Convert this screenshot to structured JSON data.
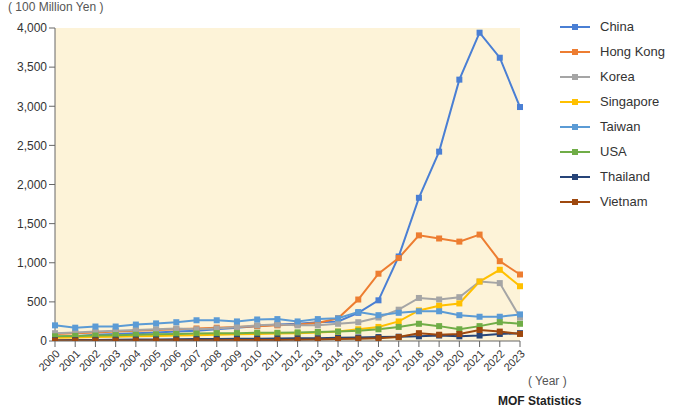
{
  "chart_data": {
    "type": "line",
    "y_label": "( 100 Million Yen )",
    "x_label": "( Year )",
    "source": "MOF Statistics",
    "categories": [
      "2000",
      "2001",
      "2002",
      "2003",
      "2004",
      "2005",
      "2006",
      "2007",
      "2008",
      "2009",
      "2010",
      "2011",
      "2012",
      "2013",
      "2014",
      "2015",
      "2016",
      "2017",
      "2018",
      "2019",
      "2020",
      "2021",
      "2022",
      "2023"
    ],
    "ylim": [
      0,
      4000
    ],
    "yticks": [
      0,
      500,
      {
        "value": 1000,
        "label": "1,000"
      },
      {
        "value": 1500,
        "label": "1,500"
      },
      {
        "value": 2000,
        "label": "2,000"
      },
      {
        "value": 2500,
        "label": "2,500"
      },
      {
        "value": 3000,
        "label": "3,000"
      },
      {
        "value": 3500,
        "label": "3,500"
      },
      {
        "value": 4000,
        "label": "4,000"
      }
    ],
    "grid": false,
    "legend": "right",
    "marker": "square",
    "series": [
      {
        "name": "China",
        "color": "#4a7fd4",
        "values": [
          50,
          60,
          80,
          90,
          100,
          110,
          120,
          130,
          150,
          170,
          190,
          210,
          220,
          240,
          250,
          360,
          520,
          1080,
          1830,
          2420,
          3340,
          3940,
          3620,
          2990
        ]
      },
      {
        "name": "Hong Kong",
        "color": "#ed7d31",
        "values": [
          90,
          100,
          110,
          120,
          130,
          140,
          150,
          160,
          170,
          180,
          190,
          200,
          210,
          230,
          290,
          530,
          860,
          1060,
          1350,
          1310,
          1270,
          1360,
          1020,
          850
        ]
      },
      {
        "name": "Korea",
        "color": "#a5a5a5",
        "values": [
          100,
          110,
          120,
          130,
          140,
          150,
          160,
          150,
          160,
          180,
          200,
          210,
          200,
          200,
          220,
          240,
          300,
          400,
          550,
          530,
          560,
          760,
          740,
          300
        ]
      },
      {
        "name": "Singapore",
        "color": "#ffc000",
        "values": [
          40,
          45,
          50,
          55,
          60,
          65,
          70,
          75,
          80,
          85,
          90,
          95,
          100,
          110,
          120,
          150,
          180,
          250,
          390,
          450,
          480,
          760,
          910,
          700
        ]
      },
      {
        "name": "Taiwan",
        "color": "#5b9bd5",
        "values": [
          200,
          170,
          185,
          185,
          210,
          225,
          240,
          265,
          265,
          250,
          275,
          280,
          250,
          280,
          290,
          370,
          330,
          360,
          380,
          380,
          330,
          310,
          310,
          340
        ]
      },
      {
        "name": "USA",
        "color": "#70ad47",
        "values": [
          60,
          65,
          70,
          75,
          80,
          85,
          90,
          95,
          100,
          100,
          105,
          105,
          110,
          115,
          120,
          130,
          150,
          180,
          220,
          190,
          150,
          190,
          240,
          220
        ]
      },
      {
        "name": "Thailand",
        "color": "#264478",
        "values": [
          10,
          12,
          14,
          16,
          18,
          20,
          22,
          24,
          26,
          28,
          30,
          32,
          34,
          36,
          40,
          45,
          50,
          55,
          60,
          70,
          60,
          70,
          90,
          100
        ]
      },
      {
        "name": "Vietnam",
        "color": "#9e480e",
        "values": [
          5,
          5,
          6,
          6,
          7,
          8,
          9,
          10,
          11,
          12,
          13,
          14,
          15,
          20,
          25,
          30,
          35,
          50,
          100,
          80,
          90,
          140,
          120,
          90
        ]
      }
    ]
  }
}
